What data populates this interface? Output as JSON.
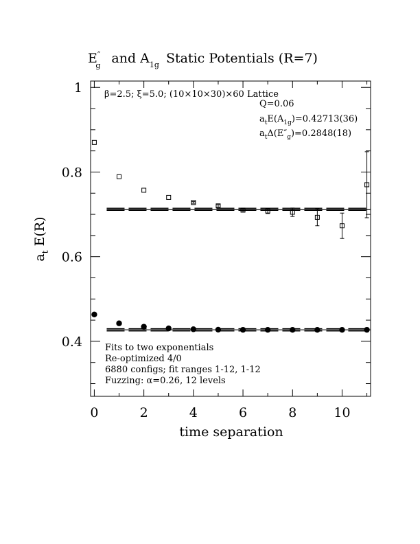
{
  "chart_data": {
    "type": "scatter",
    "title": "E″g  and A1g Static Potentials (R=7)",
    "title_parts": {
      "e_letter": "E",
      "e_prime": "″",
      "e_sub": "g",
      "connector": "and A",
      "a_sub": "1g",
      "rest": "Static Potentials (R=7)"
    },
    "xlabel": "time separation",
    "ylabel_main": "a",
    "ylabel_sub": "t",
    "ylabel_rest": "E(R)",
    "xlim": [
      -0.15,
      11.15
    ],
    "ylim": [
      0.27,
      1.015
    ],
    "xticks": [
      0,
      2,
      4,
      6,
      8,
      10
    ],
    "xtick_labels": [
      "0",
      "2",
      "4",
      "6",
      "8",
      "10"
    ],
    "yticks": [
      0.4,
      0.6,
      0.8,
      1.0
    ],
    "ytick_labels": [
      "0.4",
      "0.6",
      "0.8",
      "1"
    ],
    "annotations": {
      "lattice": "β=2.5; ξ=5.0; (10×10×30)×60 Lattice",
      "q": "Q=0.06",
      "fit_a1g_pre": "a",
      "fit_a1g_sub": "t",
      "fit_a1g_mid": "E(A",
      "fit_a1g_sub2": "1g",
      "fit_a1g_post": ")=0.42713(36)",
      "fit_delta_pre": "a",
      "fit_delta_sub": "t",
      "fit_delta_mid": "Δ(E″",
      "fit_delta_sub2": "g",
      "fit_delta_post": ")=0.2848(18)",
      "notes": [
        "Fits to two exponentials",
        "Re-optimized 4/0",
        "6880 configs; fit ranges 1-12, 1-12",
        "Fuzzing: α=0.26, 12 levels"
      ]
    },
    "series": [
      {
        "marker": "open-square",
        "x": [
          0,
          1,
          2,
          3,
          4,
          5,
          6,
          7,
          8,
          9,
          10,
          11
        ],
        "y": [
          0.87,
          0.789,
          0.757,
          0.74,
          0.728,
          0.72,
          0.71,
          0.708,
          0.705,
          0.693,
          0.673,
          0.77
        ],
        "err": [
          0.001,
          0.001,
          0.001,
          0.001,
          0.002,
          0.003,
          0.004,
          0.006,
          0.01,
          0.02,
          0.03,
          0.078
        ],
        "fit": {
          "x": [
            0.5,
            11.15
          ],
          "y": 0.7119
        }
      },
      {
        "marker": "filled-circle",
        "x": [
          0,
          1,
          2,
          3,
          4,
          5,
          6,
          7,
          8,
          9,
          10,
          11
        ],
        "y": [
          0.4635,
          0.4425,
          0.4345,
          0.4305,
          0.4285,
          0.4275,
          0.4272,
          0.4271,
          0.4271,
          0.4271,
          0.4271,
          0.4272
        ],
        "err": [
          0.0005,
          0.0005,
          0.0005,
          0.0005,
          0.0005,
          0.0005,
          0.0006,
          0.0007,
          0.0008,
          0.001,
          0.0015,
          0.002
        ],
        "fit": {
          "x": [
            0.5,
            11.15
          ],
          "y": 0.42713
        }
      }
    ]
  }
}
